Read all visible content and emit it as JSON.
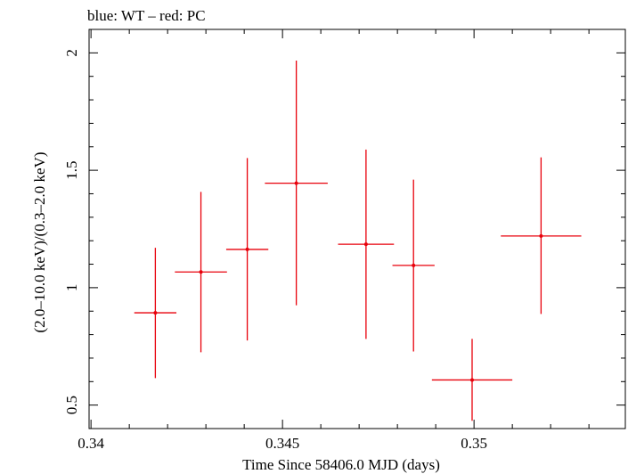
{
  "chart_data": {
    "type": "scatter",
    "title": "blue: WT – red: PC",
    "xlabel": "Time Since 58406.0 MJD (days)",
    "ylabel": "(2.0–10.0 keV)/(0.3–2.0 keV)",
    "xlim": [
      0.33995,
      0.35395
    ],
    "ylim": [
      0.4,
      2.1
    ],
    "xticks": [
      0.34,
      0.345,
      0.35
    ],
    "xtick_labels": [
      "0.34",
      "0.345",
      "0.35"
    ],
    "yticks": [
      0.5,
      1,
      1.5,
      2
    ],
    "ytick_labels": [
      "0.5",
      "1",
      "1.5",
      "2"
    ],
    "grid": false,
    "series": [
      {
        "color": "#e8000b",
        "points": [
          {
            "x": 0.34168,
            "xerr": 0.00055,
            "y": 0.893,
            "ylo": 0.615,
            "yhi": 1.17
          },
          {
            "x": 0.34287,
            "xerr": 0.00068,
            "y": 1.067,
            "ylo": 0.725,
            "yhi": 1.408
          },
          {
            "x": 0.34408,
            "xerr": 0.00055,
            "y": 1.163,
            "ylo": 0.775,
            "yhi": 1.552
          },
          {
            "x": 0.34536,
            "xerr": 0.00082,
            "y": 1.445,
            "ylo": 0.925,
            "yhi": 1.967
          },
          {
            "x": 0.34718,
            "xerr": 0.00073,
            "y": 1.185,
            "ylo": 0.782,
            "yhi": 1.588
          },
          {
            "x": 0.34842,
            "xerr": 0.00055,
            "y": 1.095,
            "ylo": 0.728,
            "yhi": 1.46
          },
          {
            "x": 0.34995,
            "xerr": 0.00105,
            "y": 0.607,
            "ylo": 0.433,
            "yhi": 0.782
          },
          {
            "x": 0.35175,
            "xerr": 0.00105,
            "y": 1.22,
            "ylo": 0.888,
            "yhi": 1.555
          }
        ]
      }
    ]
  }
}
